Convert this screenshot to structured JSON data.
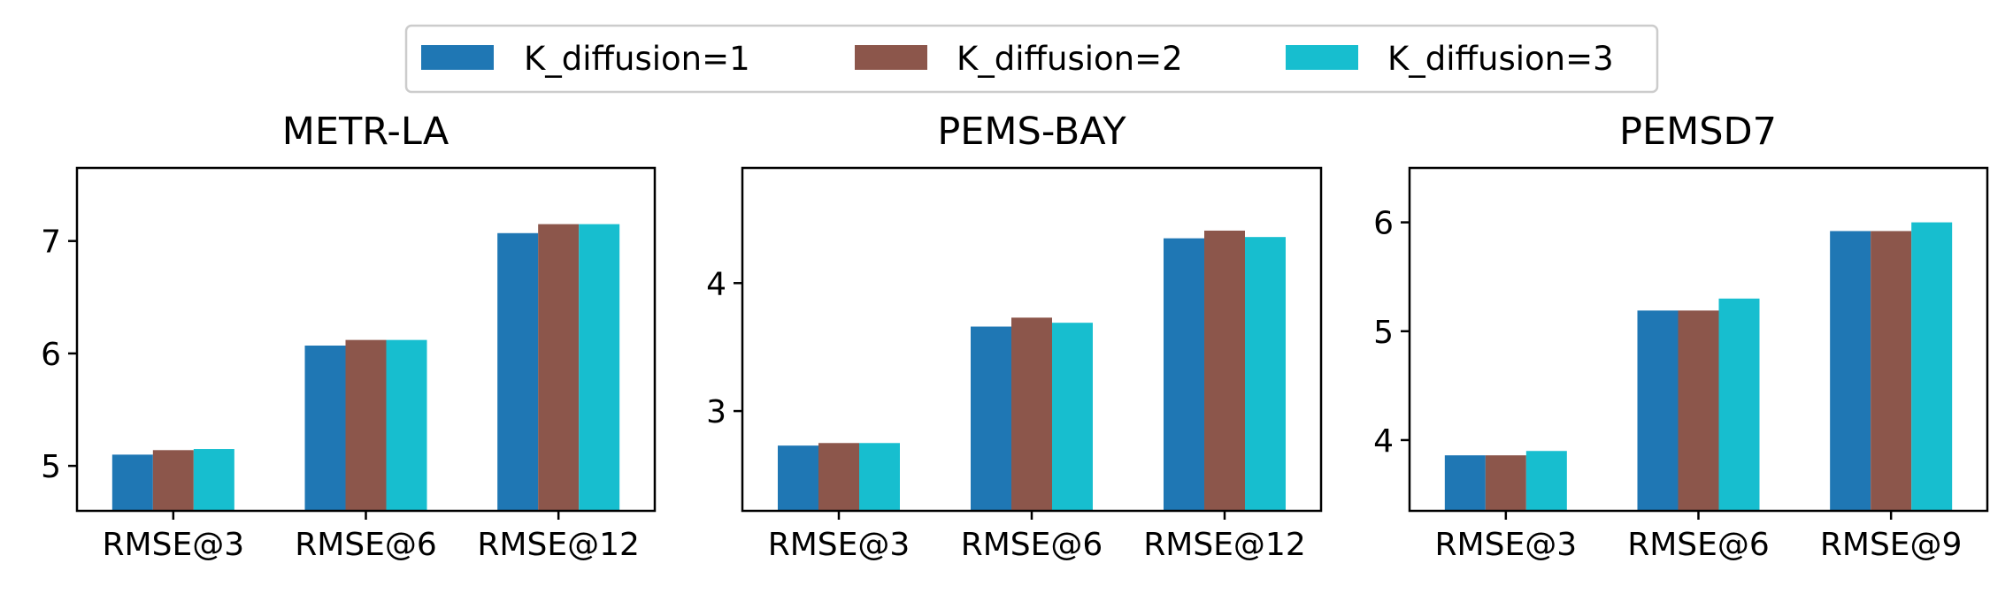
{
  "legend": {
    "position": "top-center",
    "entries": [
      {
        "label": "K_diffusion=1",
        "color": "#1f77b4"
      },
      {
        "label": "K_diffusion=2",
        "color": "#8c564b"
      },
      {
        "label": "K_diffusion=3",
        "color": "#17becf"
      }
    ]
  },
  "chart_data": [
    {
      "type": "bar",
      "title": "METR-LA",
      "categories": [
        "RMSE@3",
        "RMSE@6",
        "RMSE@12"
      ],
      "ylim": [
        4.6,
        7.65
      ],
      "yticks": [
        5,
        6,
        7
      ],
      "grid": false,
      "series": [
        {
          "name": "K_diffusion=1",
          "values": [
            5.1,
            6.07,
            7.07
          ]
        },
        {
          "name": "K_diffusion=2",
          "values": [
            5.14,
            6.12,
            7.15
          ]
        },
        {
          "name": "K_diffusion=3",
          "values": [
            5.15,
            6.12,
            7.15
          ]
        }
      ]
    },
    {
      "type": "bar",
      "title": "PEMS-BAY",
      "categories": [
        "RMSE@3",
        "RMSE@6",
        "RMSE@12"
      ],
      "ylim": [
        2.22,
        4.9
      ],
      "yticks": [
        3,
        4
      ],
      "grid": false,
      "series": [
        {
          "name": "K_diffusion=1",
          "values": [
            2.73,
            3.66,
            4.35
          ]
        },
        {
          "name": "K_diffusion=2",
          "values": [
            2.75,
            3.73,
            4.41
          ]
        },
        {
          "name": "K_diffusion=3",
          "values": [
            2.75,
            3.69,
            4.36
          ]
        }
      ]
    },
    {
      "type": "bar",
      "title": "PEMSD7",
      "categories": [
        "RMSE@3",
        "RMSE@6",
        "RMSE@9"
      ],
      "ylim": [
        3.35,
        6.5
      ],
      "yticks": [
        4,
        5,
        6
      ],
      "grid": false,
      "series": [
        {
          "name": "K_diffusion=1",
          "values": [
            3.86,
            5.19,
            5.92
          ]
        },
        {
          "name": "K_diffusion=2",
          "values": [
            3.86,
            5.19,
            5.92
          ]
        },
        {
          "name": "K_diffusion=3",
          "values": [
            3.9,
            5.3,
            6.0
          ]
        }
      ]
    }
  ]
}
